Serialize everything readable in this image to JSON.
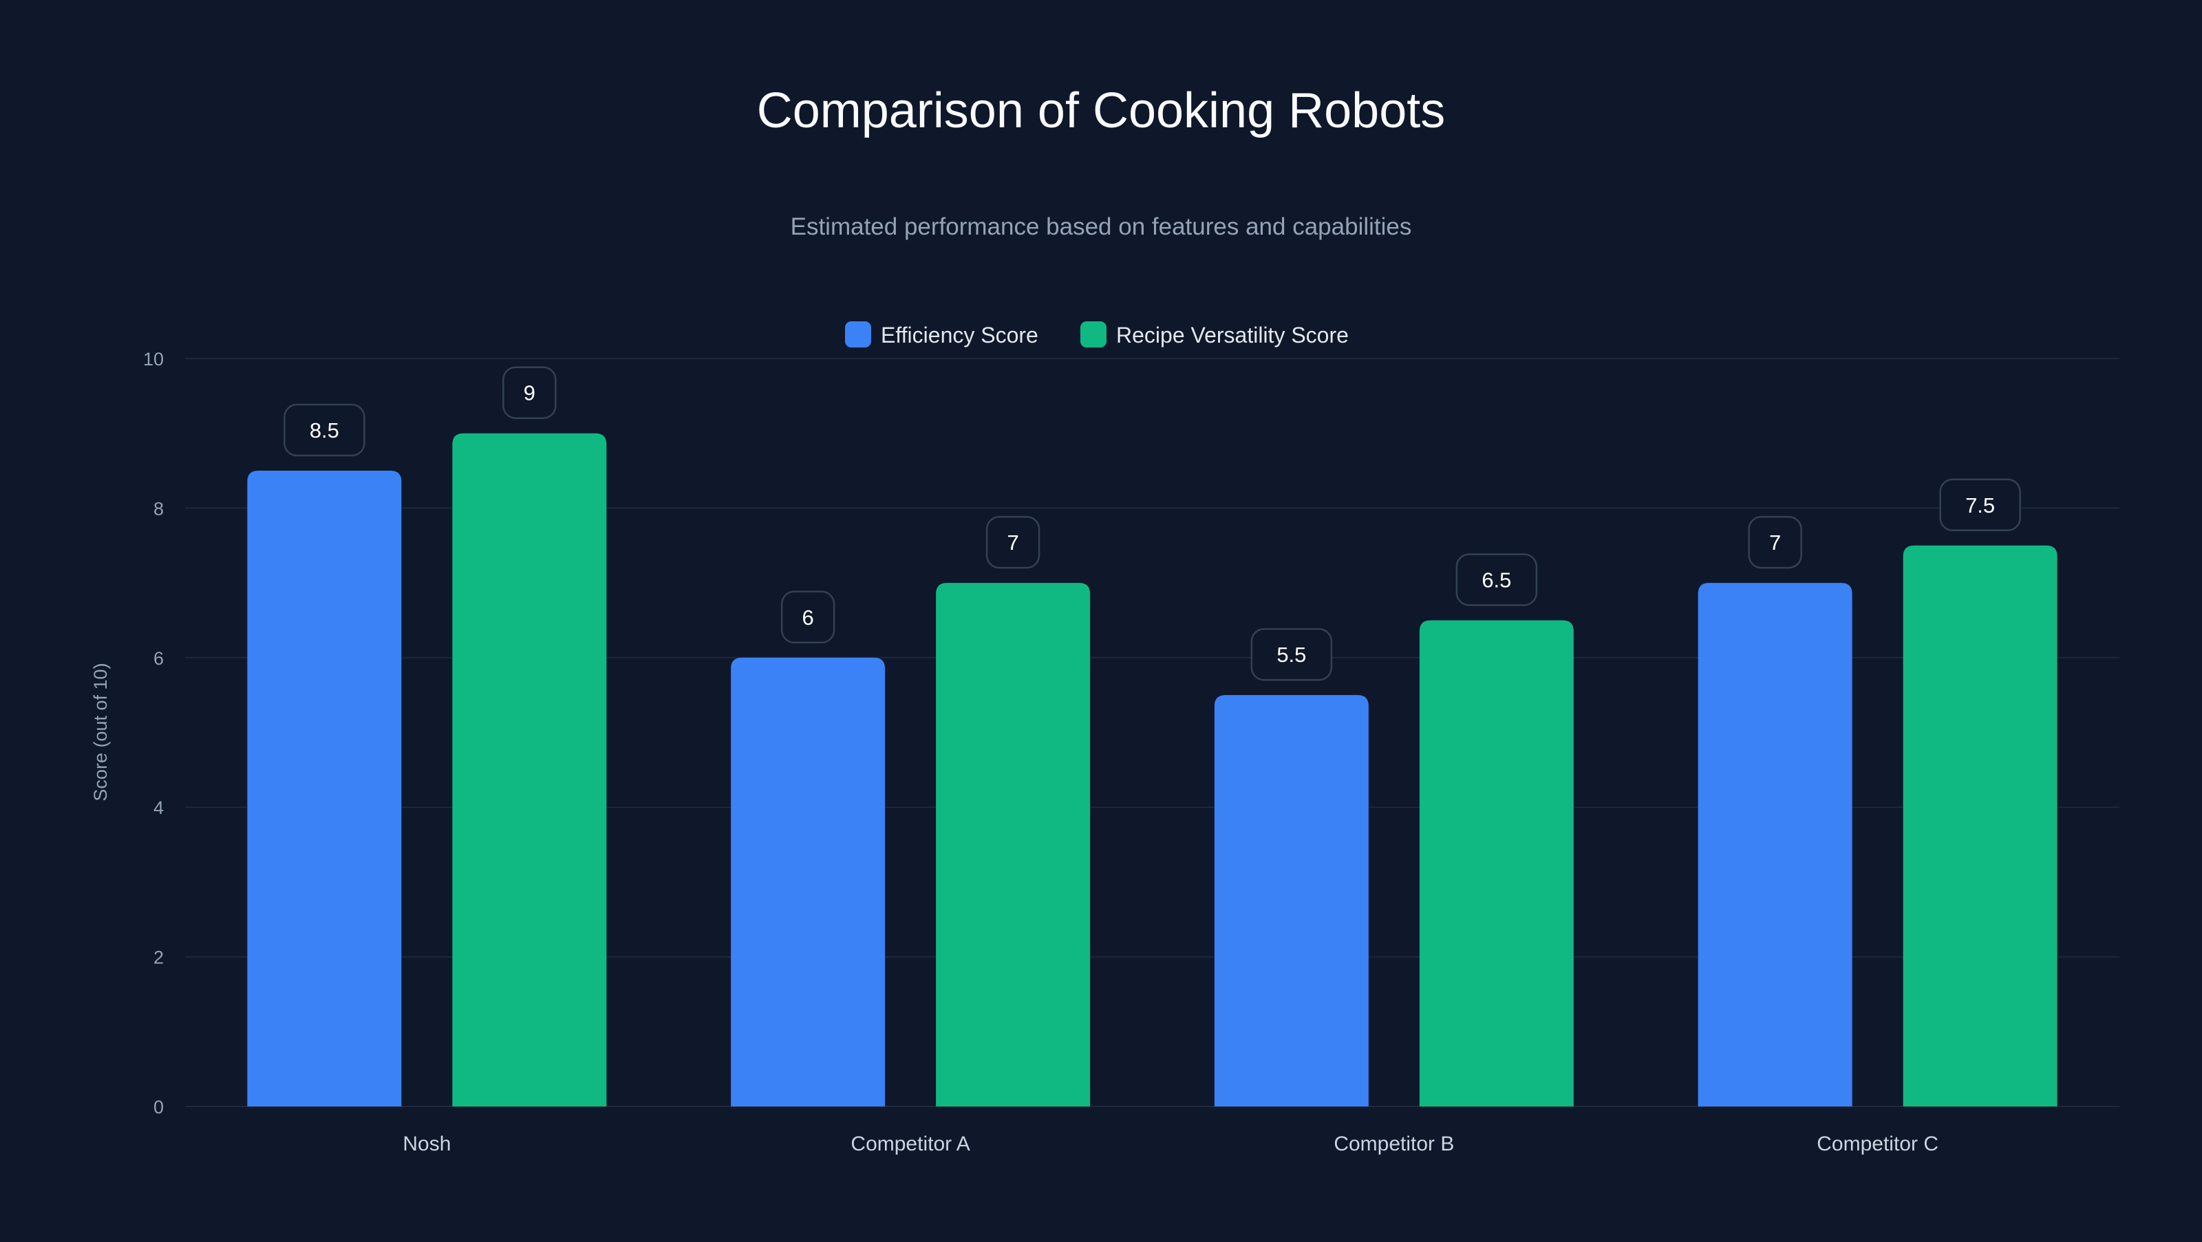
{
  "chart_data": {
    "type": "bar",
    "title": "Comparison of Cooking Robots",
    "subtitle": "Estimated performance based on features and capabilities",
    "xlabel": "",
    "ylabel": "Score (out of 10)",
    "ylim": [
      0,
      10
    ],
    "yticks": [
      0,
      2,
      4,
      6,
      8,
      10
    ],
    "grid": true,
    "legend_position": "top-center",
    "categories": [
      "Nosh",
      "Competitor A",
      "Competitor B",
      "Competitor C"
    ],
    "series": [
      {
        "name": "Efficiency Score",
        "color": "#3b82f6",
        "values": [
          8.5,
          6,
          5.5,
          7
        ]
      },
      {
        "name": "Recipe Versatility Score",
        "color": "#10b981",
        "values": [
          9,
          7,
          6.5,
          7.5
        ]
      }
    ]
  }
}
